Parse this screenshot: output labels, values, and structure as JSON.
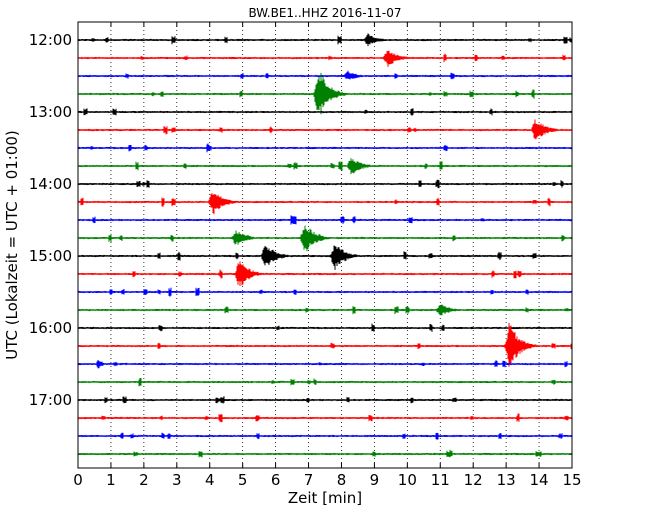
{
  "chart_data": {
    "type": "line",
    "title": "BW.BE1..HHZ 2016-11-07",
    "xlabel": "Zeit  [min]",
    "ylabel": "UTC (Lokalzeit = UTC + 01:00)",
    "xlim": [
      0,
      15
    ],
    "x_ticks": [
      "0",
      "1",
      "2",
      "3",
      "4",
      "5",
      "6",
      "7",
      "8",
      "9",
      "10",
      "11",
      "12",
      "13",
      "14",
      "15"
    ],
    "y_tick_labels": [
      "12:00",
      "13:00",
      "14:00",
      "15:00",
      "16:00",
      "17:00"
    ],
    "grid": "vertical dotted lines at each minute",
    "legend": "none",
    "trace_colors": [
      "#000000",
      "#ff0000",
      "#0000ff",
      "#008000"
    ],
    "trace_start_times": [
      "12:00",
      "12:15",
      "12:30",
      "12:45",
      "13:00",
      "13:15",
      "13:30",
      "13:45",
      "14:00",
      "14:15",
      "14:30",
      "14:45",
      "15:00",
      "15:15",
      "15:30",
      "15:45",
      "16:00",
      "16:15",
      "16:30",
      "16:45",
      "17:00",
      "17:15",
      "17:30",
      "17:45"
    ],
    "events": [
      {
        "start": "12:45",
        "minute": 7.3,
        "amplitude": 1.0
      },
      {
        "start": "12:15",
        "minute": 9.4,
        "amplitude": 0.35
      },
      {
        "start": "12:30",
        "minute": 8.2,
        "amplitude": 0.2
      },
      {
        "start": "13:15",
        "minute": 13.9,
        "amplitude": 0.45
      },
      {
        "start": "13:45",
        "minute": 8.3,
        "amplitude": 0.35
      },
      {
        "start": "14:15",
        "minute": 4.1,
        "amplitude": 0.5
      },
      {
        "start": "14:45",
        "minute": 4.8,
        "amplitude": 0.3
      },
      {
        "start": "14:45",
        "minute": 6.9,
        "amplitude": 0.6
      },
      {
        "start": "15:00",
        "minute": 5.7,
        "amplitude": 0.5
      },
      {
        "start": "15:00",
        "minute": 7.8,
        "amplitude": 0.55
      },
      {
        "start": "15:15",
        "minute": 4.9,
        "amplitude": 0.55
      },
      {
        "start": "15:45",
        "minute": 11.0,
        "amplitude": 0.25
      },
      {
        "start": "16:15",
        "minute": 13.1,
        "amplitude": 0.9
      },
      {
        "start": "12:00",
        "minute": 8.8,
        "amplitude": 0.25
      }
    ]
  }
}
